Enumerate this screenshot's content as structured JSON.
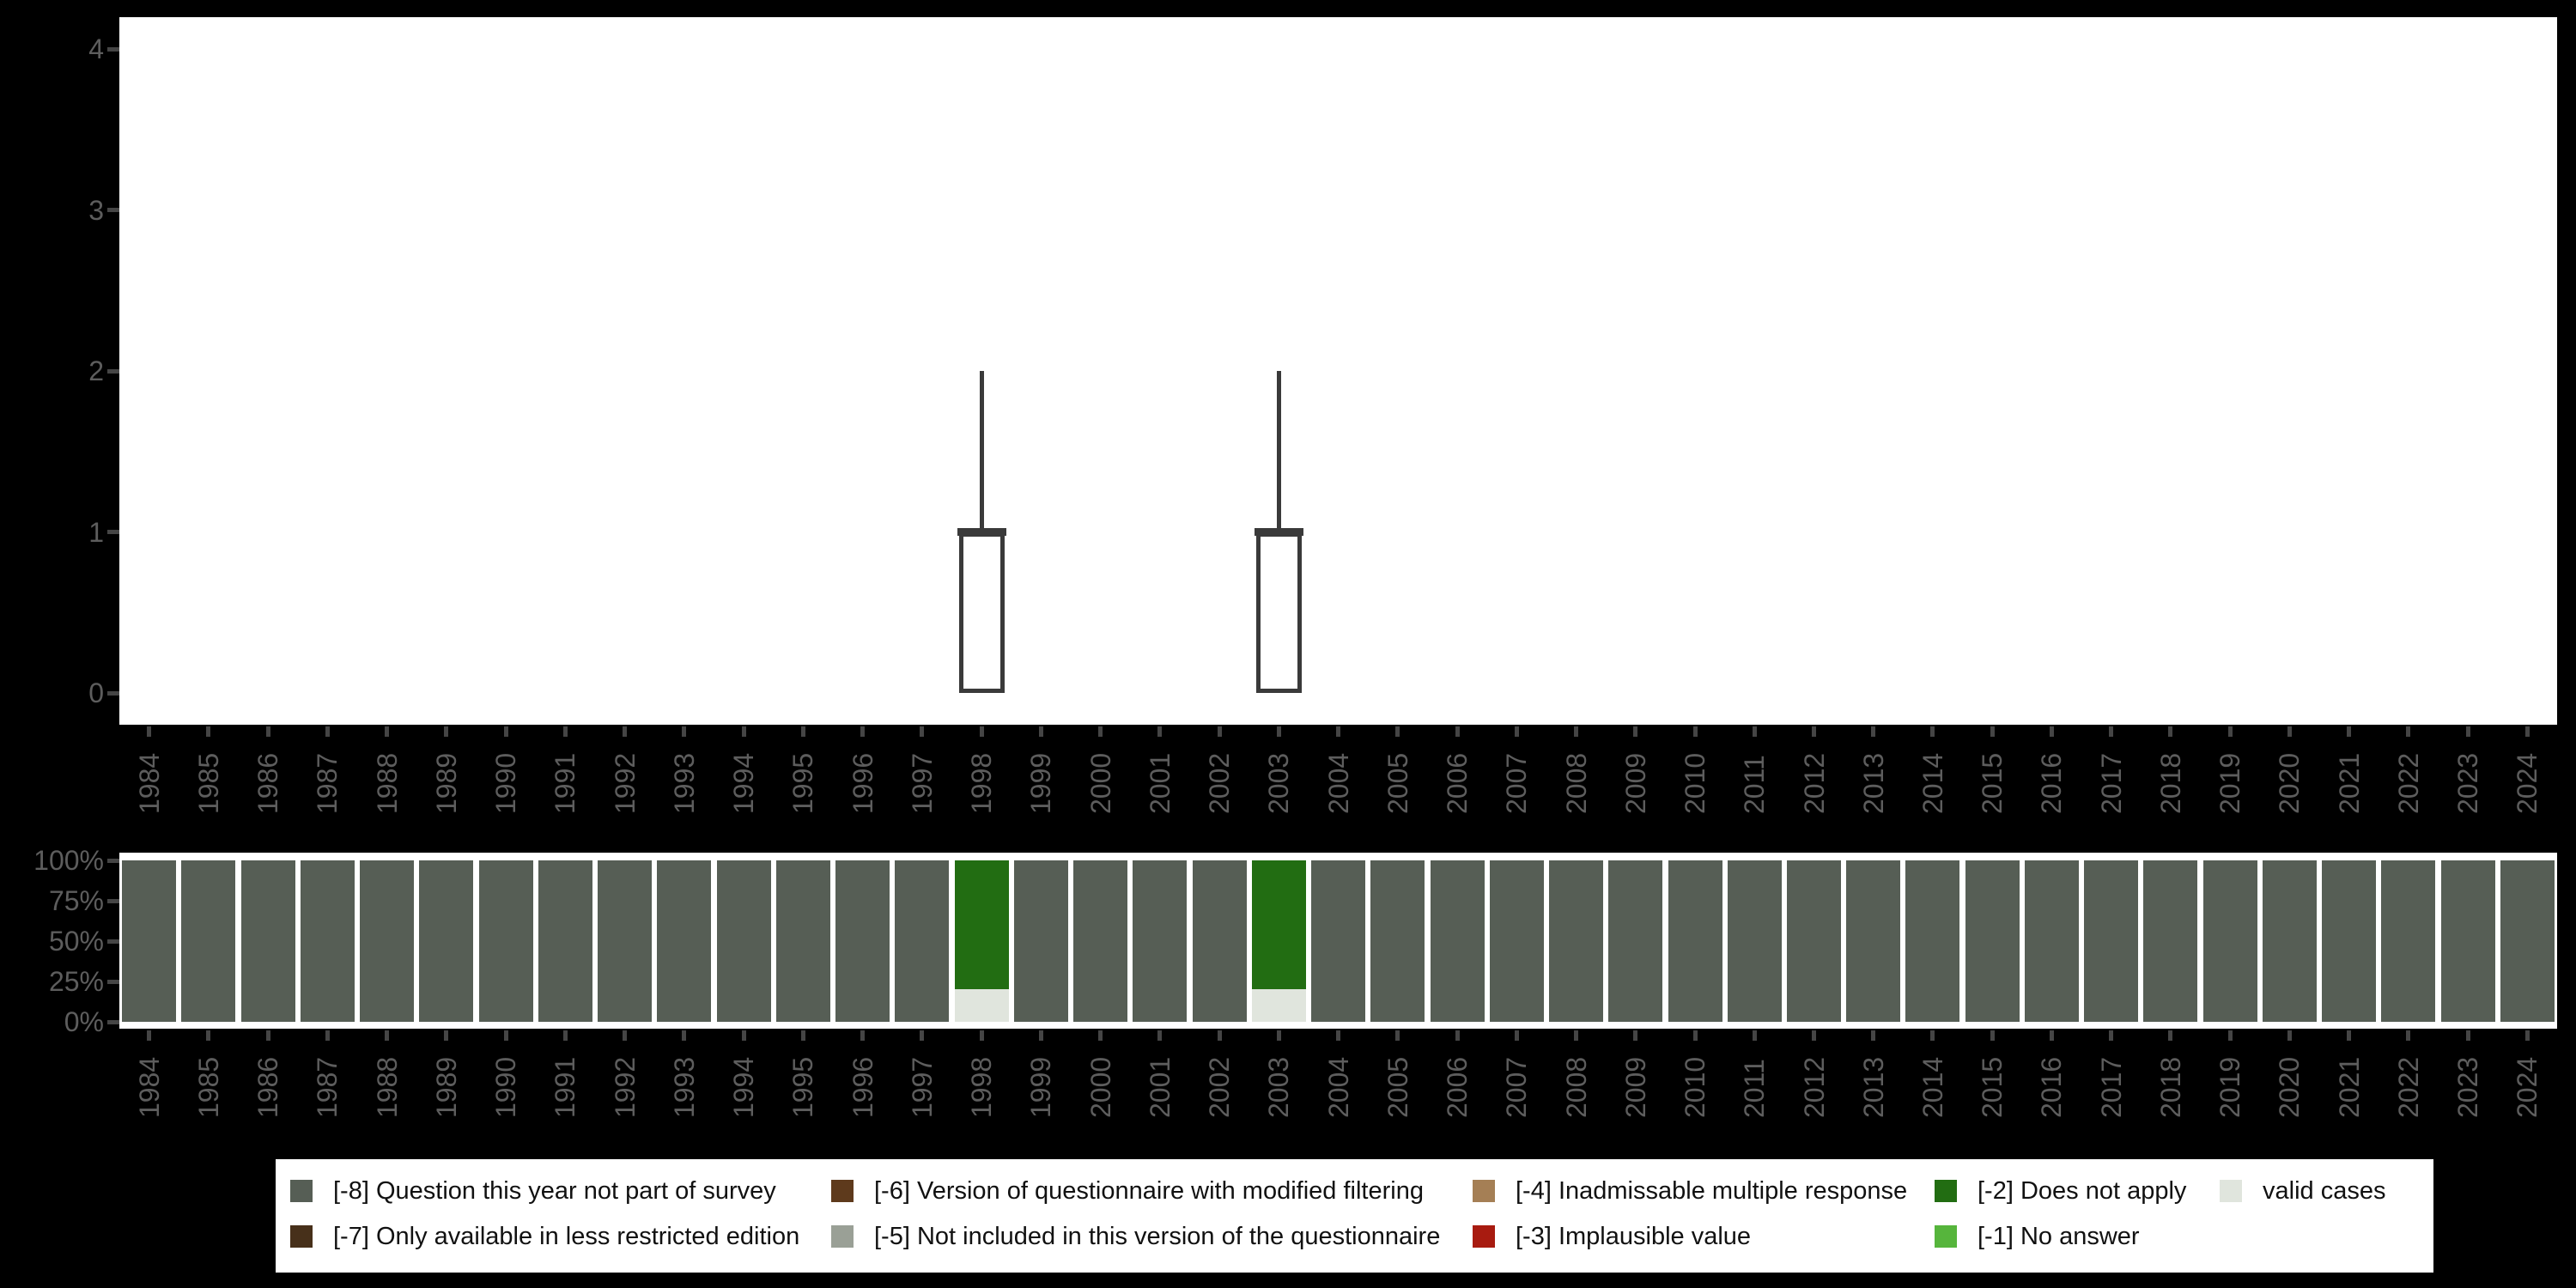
{
  "title": "",
  "colors": {
    "background": "#000000",
    "panel_background": "#ffffff",
    "axis_label": "#5d5d5d",
    "axis_tick": "#454545",
    "boxplot_stroke": "#3a3a3a",
    "legend_background": "#ffffff",
    "legend_text": "#111111",
    "categories": {
      "[-8] Question this year not part of survey": "#565e55",
      "[-7] Only available in less restricted edition": "#47301a",
      "[-6] Version of questionnaire with modified filtering": "#5e3a1c",
      "[-5] Not included in this version of the questionnaire": "#9aa096",
      "[-4] Inadmissable multiple response": "#a57f55",
      "[-3] Implausible value": "#a81b10",
      "[-2] Does not apply": "#226d12",
      "[-1] No answer": "#56b53c",
      "valid cases": "#e0e5dd"
    }
  },
  "chart_data": [
    {
      "type": "boxplot",
      "title": "",
      "xlabel": "",
      "ylabel": "",
      "ylim": [
        0,
        4
      ],
      "yticks": [
        0,
        1,
        2,
        3,
        4
      ],
      "grid": false,
      "x_categories": [
        1984,
        1985,
        1986,
        1987,
        1988,
        1989,
        1990,
        1991,
        1992,
        1993,
        1994,
        1995,
        1996,
        1997,
        1998,
        1999,
        2000,
        2001,
        2002,
        2003,
        2004,
        2005,
        2006,
        2007,
        2008,
        2009,
        2010,
        2011,
        2012,
        2013,
        2014,
        2015,
        2016,
        2017,
        2018,
        2019,
        2020,
        2021,
        2022,
        2023,
        2024
      ],
      "boxes": [
        {
          "x": 1998,
          "whisker_low": 0,
          "q1": 0,
          "median": 1,
          "q3": 1,
          "whisker_high": 2
        },
        {
          "x": 2003,
          "whisker_low": 0,
          "q1": 0,
          "median": 1,
          "q3": 1,
          "whisker_high": 2
        }
      ]
    },
    {
      "type": "bar",
      "stacked": true,
      "unit": "percent",
      "title": "",
      "xlabel": "",
      "ylabel": "",
      "ylim": [
        0,
        100
      ],
      "ytick_percents": [
        0,
        25,
        50,
        75,
        100
      ],
      "ytick_labels": [
        "0%",
        "25%",
        "50%",
        "75%",
        "100%"
      ],
      "grid": false,
      "categories": [
        1984,
        1985,
        1986,
        1987,
        1988,
        1989,
        1990,
        1991,
        1992,
        1993,
        1994,
        1995,
        1996,
        1997,
        1998,
        1999,
        2000,
        2001,
        2002,
        2003,
        2004,
        2005,
        2006,
        2007,
        2008,
        2009,
        2010,
        2011,
        2012,
        2013,
        2014,
        2015,
        2016,
        2017,
        2018,
        2019,
        2020,
        2021,
        2022,
        2023,
        2024
      ],
      "stack_order_bottom_to_top": [
        "valid cases",
        "[-2] Does not apply",
        "[-8] Question this year not part of survey"
      ],
      "series": [
        {
          "name": "[-8] Question this year not part of survey",
          "values": [
            100,
            100,
            100,
            100,
            100,
            100,
            100,
            100,
            100,
            100,
            100,
            100,
            100,
            100,
            0,
            100,
            100,
            100,
            100,
            0,
            100,
            100,
            100,
            100,
            100,
            100,
            100,
            100,
            100,
            100,
            100,
            100,
            100,
            100,
            100,
            100,
            100,
            100,
            100,
            100,
            100
          ]
        },
        {
          "name": "[-2] Does not apply",
          "values": [
            0,
            0,
            0,
            0,
            0,
            0,
            0,
            0,
            0,
            0,
            0,
            0,
            0,
            0,
            80,
            0,
            0,
            0,
            0,
            80,
            0,
            0,
            0,
            0,
            0,
            0,
            0,
            0,
            0,
            0,
            0,
            0,
            0,
            0,
            0,
            0,
            0,
            0,
            0,
            0,
            0
          ]
        },
        {
          "name": "valid cases",
          "values": [
            0,
            0,
            0,
            0,
            0,
            0,
            0,
            0,
            0,
            0,
            0,
            0,
            0,
            0,
            20,
            0,
            0,
            0,
            0,
            20,
            0,
            0,
            0,
            0,
            0,
            0,
            0,
            0,
            0,
            0,
            0,
            0,
            0,
            0,
            0,
            0,
            0,
            0,
            0,
            0,
            0
          ]
        }
      ]
    }
  ],
  "legend": {
    "rows": [
      [
        {
          "label": "[-8] Question this year not part of survey",
          "color": "#565e55"
        },
        {
          "label": "[-6] Version of questionnaire with modified filtering",
          "color": "#5e3a1c"
        },
        {
          "label": "[-4] Inadmissable multiple response",
          "color": "#a57f55"
        },
        {
          "label": "[-2] Does not apply",
          "color": "#226d12"
        },
        {
          "label": "valid cases",
          "color": "#e0e5dd"
        }
      ],
      [
        {
          "label": "[-7] Only available in less restricted edition",
          "color": "#47301a"
        },
        {
          "label": "[-5] Not included in this version of the questionnaire",
          "color": "#9aa096"
        },
        {
          "label": "[-3] Implausible value",
          "color": "#a81b10"
        },
        {
          "label": "[-1] No answer",
          "color": "#56b53c"
        }
      ]
    ]
  }
}
